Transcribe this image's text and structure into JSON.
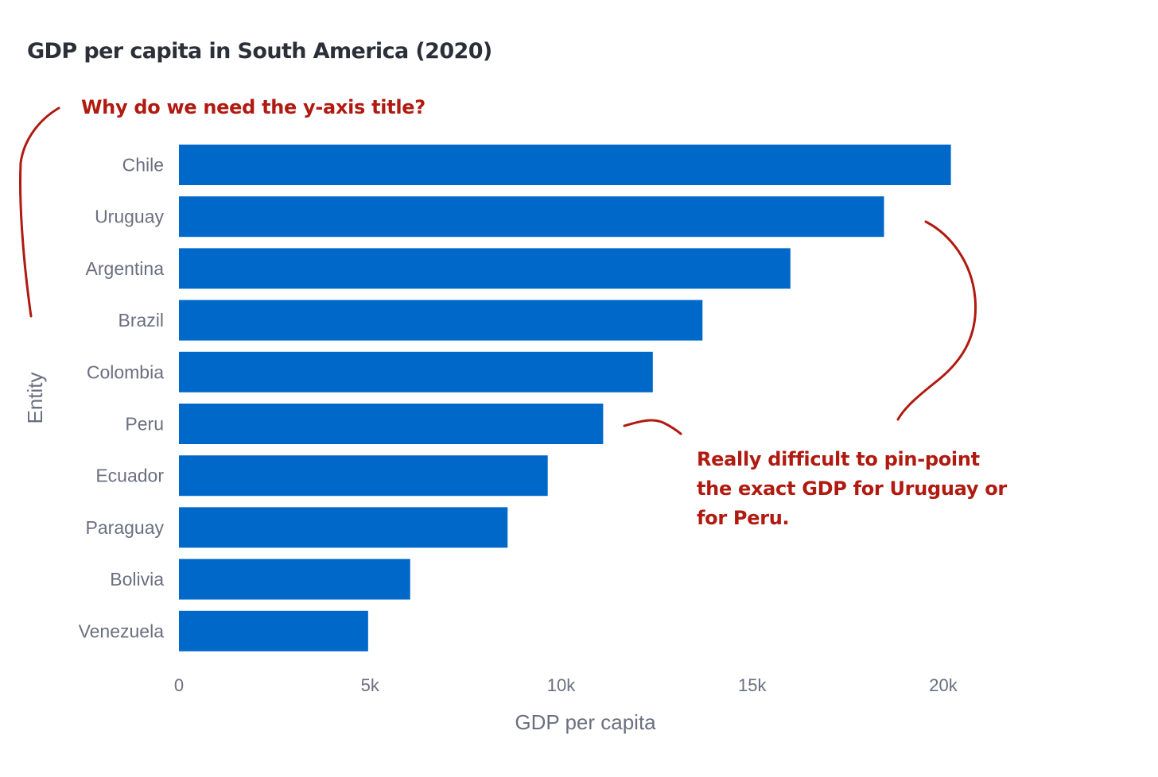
{
  "chart_data": {
    "type": "bar",
    "orientation": "horizontal",
    "title": "GDP per capita in South America (2020)",
    "xlabel": "GDP per capita",
    "ylabel": "Entity",
    "categories": [
      "Chile",
      "Uruguay",
      "Argentina",
      "Brazil",
      "Colombia",
      "Peru",
      "Ecuador",
      "Paraguay",
      "Bolivia",
      "Venezuela"
    ],
    "values": [
      20200,
      18450,
      16000,
      13700,
      12400,
      11100,
      9650,
      8600,
      6050,
      4950
    ],
    "xlim": [
      0,
      20000
    ],
    "xticks": [
      0,
      5000,
      10000,
      15000,
      20000
    ],
    "xtick_labels": [
      "0",
      "5k",
      "10k",
      "15k",
      "20k"
    ],
    "grid": false,
    "bar_color": "#0068c9",
    "annotations": [
      {
        "id": "yaxis-note",
        "text": [
          "Why do we need the y-axis title?"
        ],
        "color": "#b01a10"
      },
      {
        "id": "precision-note",
        "text": [
          "Really difficult to pin-point",
          "the exact GDP for Uruguay or",
          "for Peru."
        ],
        "color": "#b01a10"
      }
    ]
  }
}
